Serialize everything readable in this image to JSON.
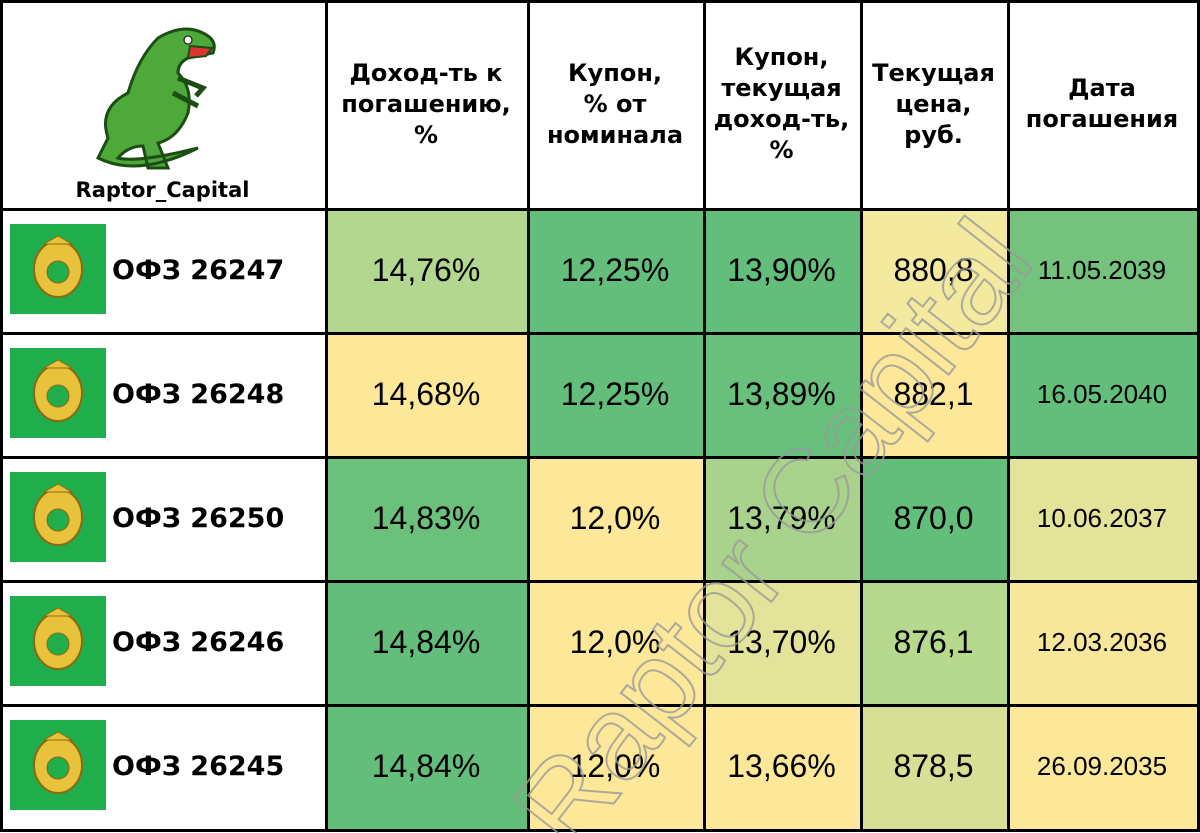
{
  "table": {
    "logo_caption": "Raptor_Capital",
    "header": [
      "Доход-ть к\nпогашению,\n%",
      "Купон,\n% от\nноминала",
      "Купон,\nтекущая\nдоход-ть,\n%",
      "Текущая\nцена,\nруб.",
      "Дата\nпогашения"
    ],
    "rows": [
      [
        "ОФЗ 26247",
        "14,76%",
        "12,25%",
        "13,90%",
        "880,8",
        "11.05.2039"
      ],
      [
        "ОФЗ 26248",
        "14,68%",
        "12,25%",
        "13,89%",
        "882,1",
        "16.05.2040"
      ],
      [
        "ОФЗ 26250",
        "14,83%",
        "12,0%",
        "13,79%",
        "870,0",
        "10.06.2037"
      ],
      [
        "ОФЗ 26246",
        "14,84%",
        "12,0%",
        "13,70%",
        "876,1",
        "12.03.2036"
      ],
      [
        "ОФЗ 26245",
        "14,84%",
        "12,0%",
        "13,66%",
        "878,5",
        "26.09.2035"
      ]
    ],
    "colors": [
      [
        "#b3d78f",
        "#63be7b",
        "#63be7b",
        "#f4ea9f",
        "#74c27e"
      ],
      [
        "#fde89a",
        "#63be7b",
        "#68c07c",
        "#fde89a",
        "#63be7b"
      ],
      [
        "#6bc17c",
        "#fde89a",
        "#a9d38c",
        "#63be7b",
        "#e4e39a"
      ],
      [
        "#63be7b",
        "#fde89a",
        "#e4e39a",
        "#b6d98e",
        "#f6e79b"
      ],
      [
        "#63be7b",
        "#fde89a",
        "#fde89a",
        "#d6df95",
        "#fde89a"
      ]
    ],
    "watermark": "Raptor Capital"
  }
}
